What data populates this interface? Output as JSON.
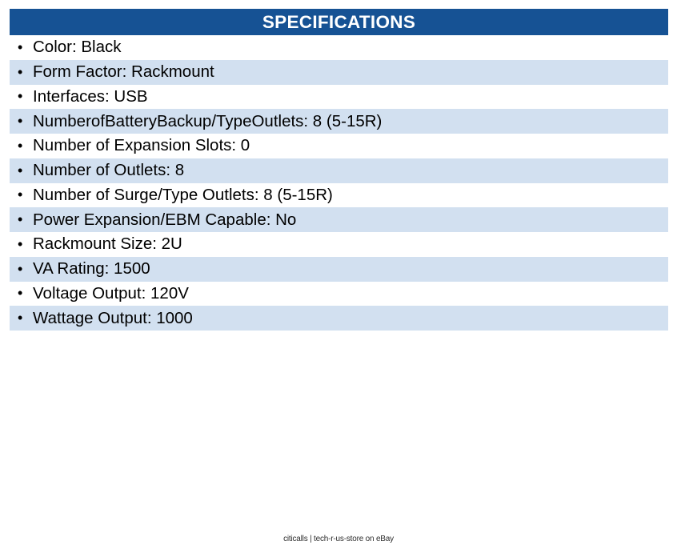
{
  "colors": {
    "header_bg": "#165294",
    "header_text": "#ffffff",
    "row_alt_bg": "#d2e0f0",
    "row_text": "#000000",
    "footer_text": "#2d2d2d"
  },
  "header": {
    "title": "SPECIFICATIONS"
  },
  "list": {
    "bullet_glyph": "•",
    "rows": [
      {
        "text": "Color: Black"
      },
      {
        "text": "Form Factor: Rackmount"
      },
      {
        "text": "Interfaces: USB"
      },
      {
        "text": "NumberofBatteryBackup/TypeOutlets: 8 (5-15R)"
      },
      {
        "text": "Number of Expansion Slots: 0"
      },
      {
        "text": "Number of Outlets: 8"
      },
      {
        "text": "Number of Surge/Type Outlets: 8 (5-15R)"
      },
      {
        "text": "Power Expansion/EBM Capable: No"
      },
      {
        "text": "Rackmount Size: 2U"
      },
      {
        "text": "VA Rating: 1500"
      },
      {
        "text": "Voltage Output: 120V"
      },
      {
        "text": "Wattage Output: 1000"
      }
    ]
  },
  "footer": {
    "text": "citicalls | tech-r-us-store on eBay"
  }
}
